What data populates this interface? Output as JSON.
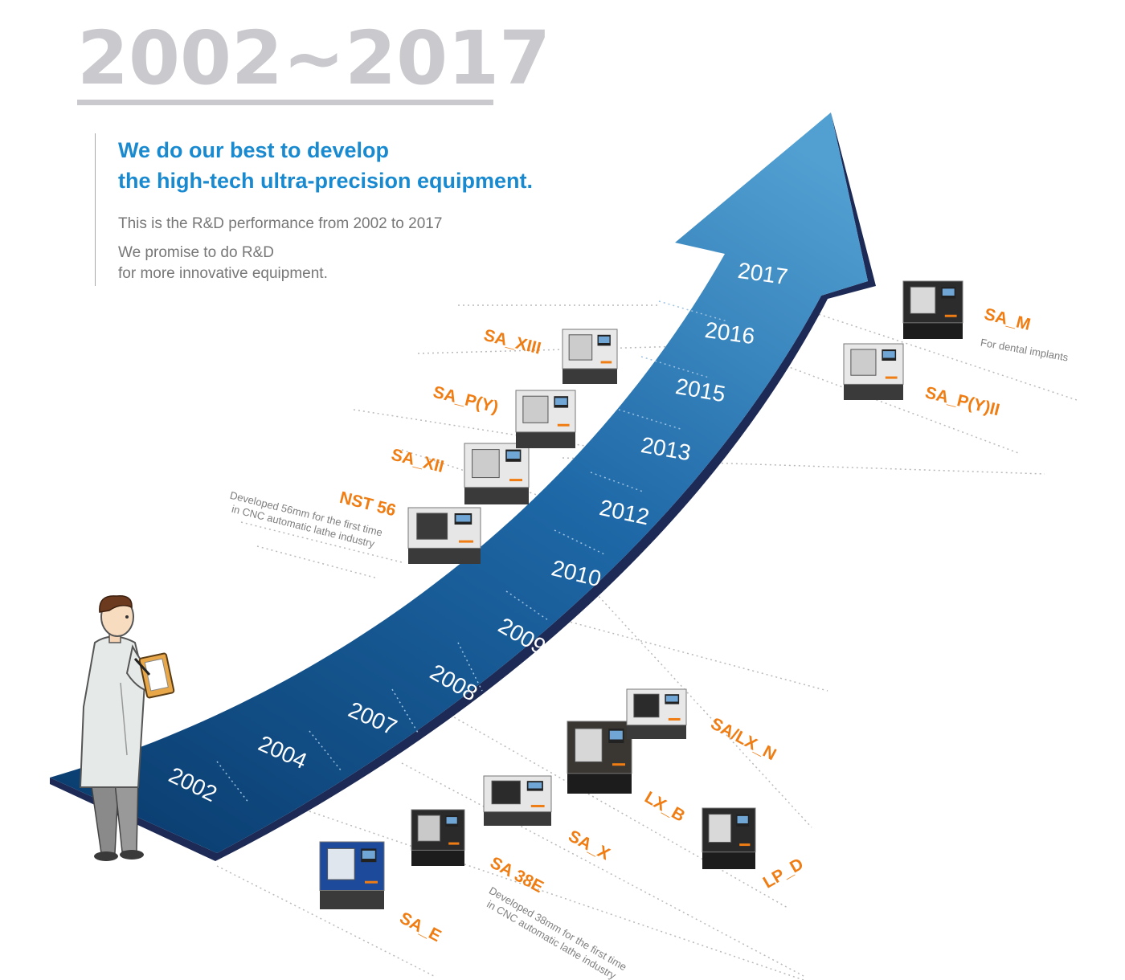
{
  "header": {
    "title": "2002~2017",
    "headline_line1": "We do our best to develop",
    "headline_line2": "the high-tech ultra-precision equipment.",
    "text1": "This is the R&D performance from 2002 to 2017",
    "text2_line1": "We promise to do R&D",
    "text2_line2": "for more innovative equipment."
  },
  "timeline": {
    "years": [
      "2002",
      "2004",
      "2007",
      "2008",
      "2009",
      "2010",
      "2012",
      "2013",
      "2015",
      "2016",
      "2017"
    ]
  },
  "products": [
    {
      "name": "SA_E",
      "note": []
    },
    {
      "name": "SA 38E",
      "note": [
        "Developed 38mm for the first time",
        "in CNC automatic lathe industry"
      ]
    },
    {
      "name": "SA_X",
      "note": []
    },
    {
      "name": "LX_B",
      "note": []
    },
    {
      "name": "SA/LX_N",
      "note": []
    },
    {
      "name": "LP_D",
      "note": []
    },
    {
      "name": "NST 56",
      "note": [
        "Developed 56mm for the first time",
        "in CNC automatic lathe industry"
      ]
    },
    {
      "name": "SA_XII",
      "note": []
    },
    {
      "name": "SA_P(Y)",
      "note": []
    },
    {
      "name": "SA_XIII",
      "note": []
    },
    {
      "name": "SA_P(Y)II",
      "note": []
    },
    {
      "name": "SA_M",
      "note": [
        "For dental implants"
      ]
    }
  ],
  "colors": {
    "title_gray": "#c9c9ce",
    "headline_blue": "#1a8ad0",
    "arrow_dark": "#0b3f72",
    "arrow_light": "#4f9cd0",
    "product_orange": "#ef7d13"
  }
}
